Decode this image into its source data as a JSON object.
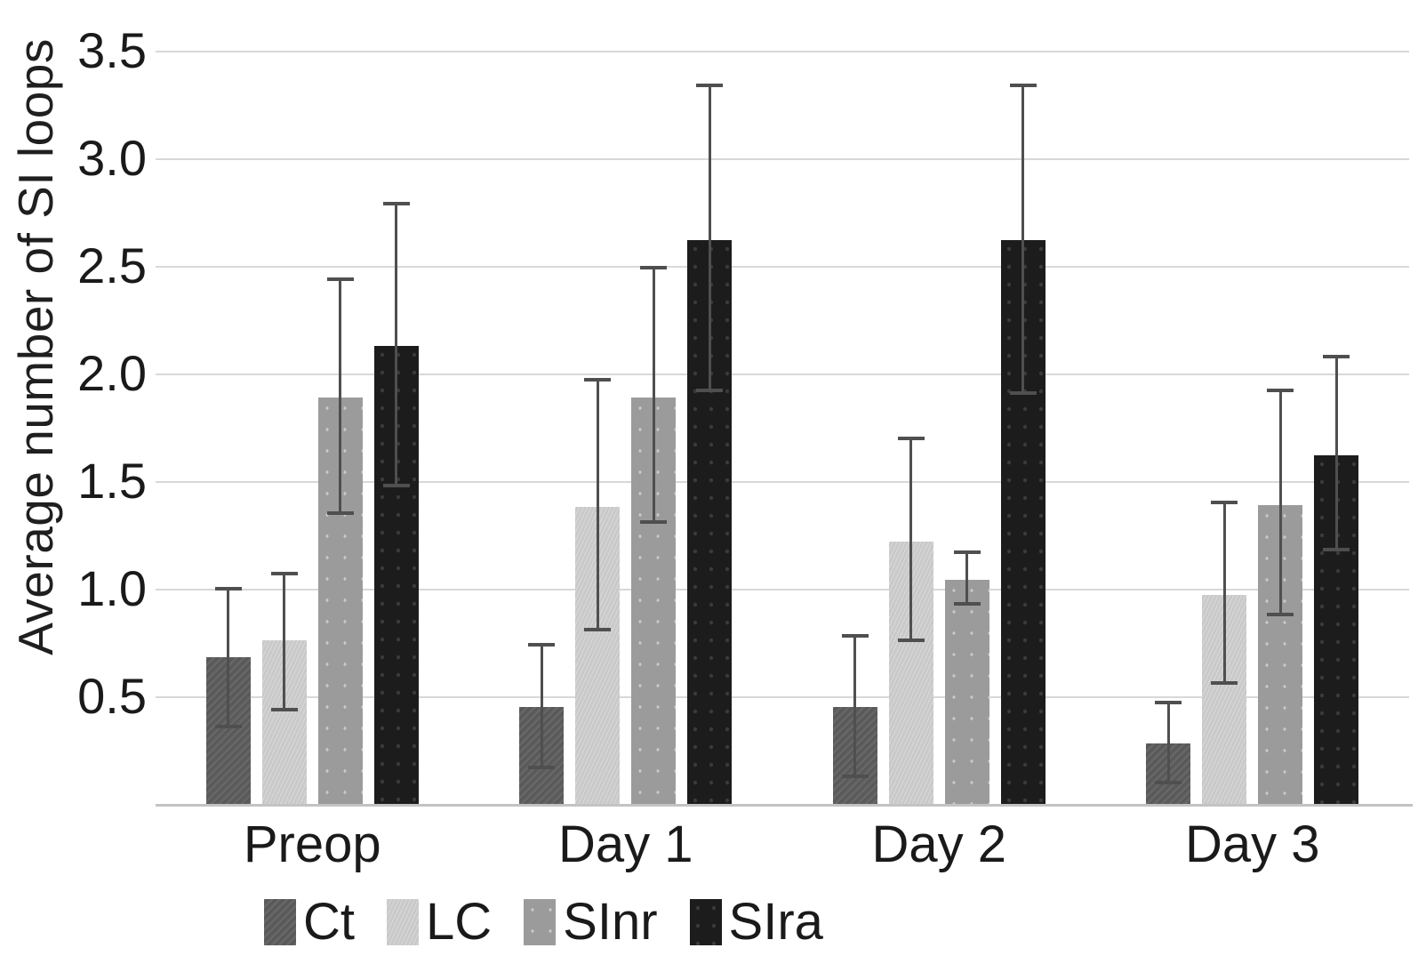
{
  "chart_data": {
    "type": "bar",
    "title": "",
    "xlabel": "",
    "ylabel": "Average number of SI loops",
    "ylim": [
      0,
      3.5
    ],
    "yticks": [
      0.5,
      1.0,
      1.5,
      2.0,
      2.5,
      3.0,
      3.5
    ],
    "ytick_labels": [
      "0.5",
      "1.0",
      "1.5",
      "2.0",
      "2.5",
      "3.0",
      "3.5"
    ],
    "grid": true,
    "error_bars": true,
    "legend_position": "bottom",
    "categories": [
      "Preop",
      "Day 1",
      "Day 2",
      "Day 3"
    ],
    "series": [
      {
        "name": "Ct",
        "color": "#5d5d5d",
        "css_class": "ct",
        "values": [
          0.68,
          0.45,
          0.45,
          0.28
        ],
        "err_low": [
          0.36,
          0.17,
          0.13,
          0.1
        ],
        "err_high": [
          1.0,
          0.74,
          0.78,
          0.47
        ]
      },
      {
        "name": "LC",
        "color": "#c9c9c9",
        "css_class": "lc",
        "values": [
          0.76,
          1.38,
          1.22,
          0.97
        ],
        "err_low": [
          0.44,
          0.81,
          0.76,
          0.56
        ],
        "err_high": [
          1.07,
          1.97,
          1.7,
          1.4
        ]
      },
      {
        "name": "SInr",
        "color": "#9b9b9b",
        "css_class": "sinr",
        "values": [
          1.89,
          1.89,
          1.04,
          1.39
        ],
        "err_low": [
          1.35,
          1.31,
          0.93,
          0.88
        ],
        "err_high": [
          2.44,
          2.49,
          1.17,
          1.92
        ]
      },
      {
        "name": "SIra",
        "color": "#1c1c1c",
        "css_class": "sira",
        "values": [
          2.13,
          2.62,
          2.62,
          1.62
        ],
        "err_low": [
          1.48,
          1.92,
          1.91,
          1.18
        ],
        "err_high": [
          2.79,
          3.34,
          3.34,
          2.08
        ]
      }
    ]
  }
}
